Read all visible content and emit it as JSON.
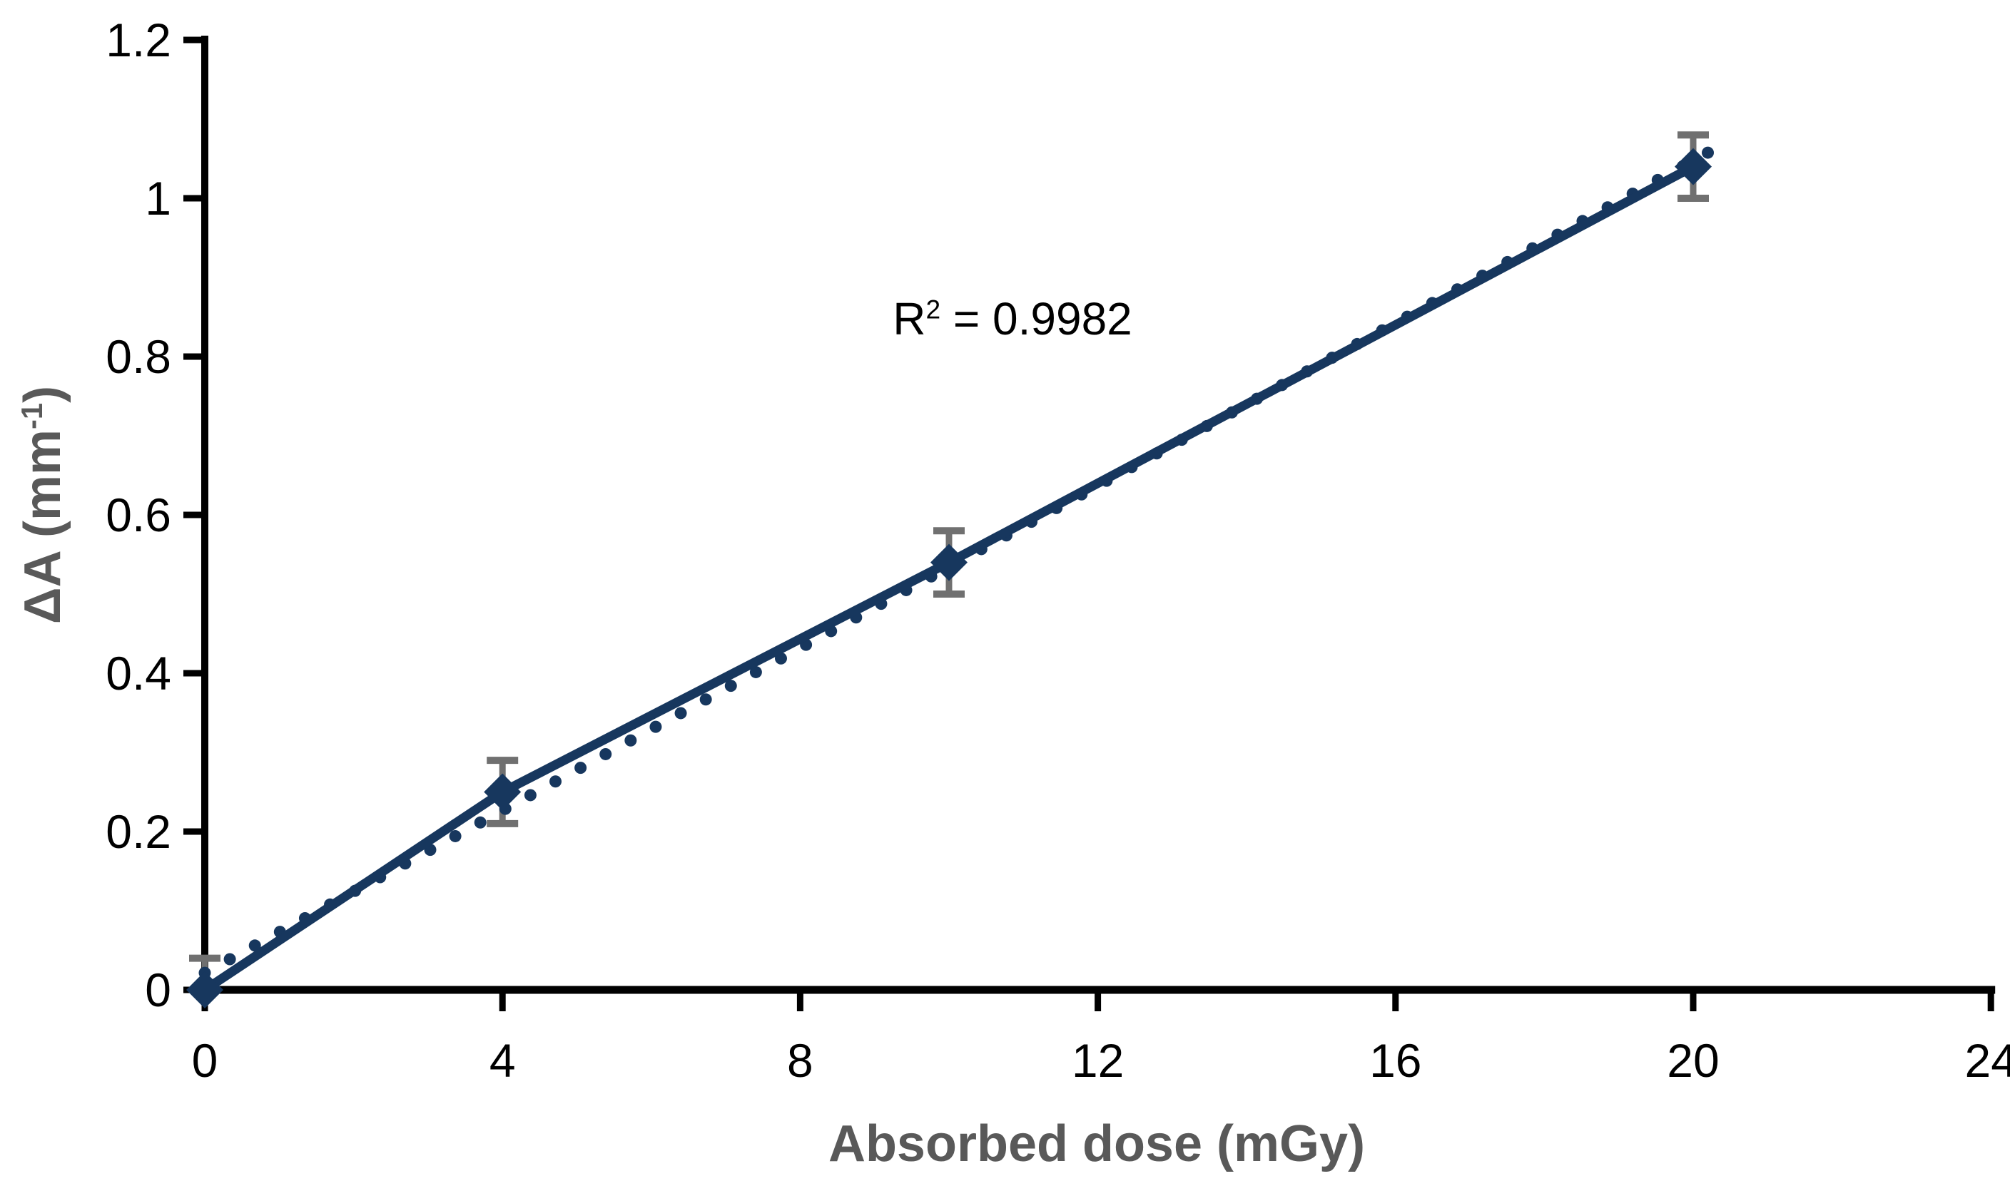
{
  "chart_data": {
    "type": "scatter",
    "title": "",
    "xlabel": "Absorbed dose (mGy)",
    "ylabel_parts": {
      "main": "ΔA (mm",
      "sup": "-1",
      "suffix": ")"
    },
    "annotation": {
      "prefix": "R",
      "sup": "2",
      "suffix": " = 0.9982"
    },
    "x": [
      0,
      4,
      10,
      20
    ],
    "y": [
      0,
      0.25,
      0.54,
      1.04
    ],
    "y_error": 0.04,
    "trendline": {
      "type": "linear",
      "slope": 0.0513,
      "intercept": 0.0215,
      "r_squared": 0.9982,
      "style": "dotted",
      "x_range": [
        0,
        20.2
      ]
    },
    "xlim": [
      0,
      24
    ],
    "ylim": [
      0,
      1.2
    ],
    "xticks": [
      0,
      4,
      8,
      12,
      16,
      20,
      24
    ],
    "xtick_labels": [
      "0",
      "4",
      "8",
      "12",
      "16",
      "20",
      "24"
    ],
    "yticks": [
      0,
      0.2,
      0.4,
      0.6,
      0.8,
      1.0,
      1.2
    ],
    "ytick_labels": [
      "0",
      "0.2",
      "0.4",
      "0.6",
      "0.8",
      "1",
      "1.2"
    ],
    "grid": false,
    "legend": null,
    "marker": "diamond",
    "colors": {
      "series": "#17375e",
      "error_bar": "#707070",
      "axis": "#000000",
      "tick_label": "#000000",
      "axis_title": "#595959",
      "annotation": "#000000",
      "background": "#ffffff"
    }
  }
}
